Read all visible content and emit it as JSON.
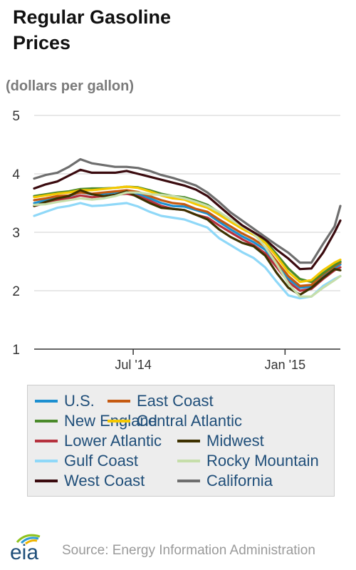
{
  "chart_data": {
    "type": "line",
    "title": "Regular Gasoline Prices",
    "ylabel": "(dollars per gallon)",
    "ylim": [
      1,
      5
    ],
    "yticks": [
      1,
      2,
      3,
      4,
      5
    ],
    "x_tick_labels": [
      "Jul '14",
      "Jan '15"
    ],
    "xlim": [
      "2014-03-03",
      "2015-03-09"
    ],
    "x_tick_dates": [
      "2014-07-01",
      "2015-01-01"
    ],
    "grid": true,
    "legend_position": "bottom",
    "x": [
      "2014-03-03",
      "2014-03-17",
      "2014-03-31",
      "2014-04-14",
      "2014-04-28",
      "2014-05-12",
      "2014-05-26",
      "2014-06-09",
      "2014-06-23",
      "2014-07-07",
      "2014-07-21",
      "2014-08-04",
      "2014-08-18",
      "2014-09-01",
      "2014-09-15",
      "2014-09-29",
      "2014-10-13",
      "2014-10-27",
      "2014-11-10",
      "2014-11-24",
      "2014-12-08",
      "2014-12-22",
      "2015-01-05",
      "2015-01-19",
      "2015-02-02",
      "2015-02-16",
      "2015-03-02",
      "2015-03-09"
    ],
    "series": [
      {
        "name": "U.S.",
        "color": "#1c8fd0",
        "values": [
          3.5,
          3.55,
          3.6,
          3.62,
          3.68,
          3.65,
          3.66,
          3.68,
          3.7,
          3.66,
          3.58,
          3.5,
          3.45,
          3.44,
          3.38,
          3.32,
          3.18,
          3.05,
          2.93,
          2.83,
          2.7,
          2.45,
          2.2,
          2.05,
          2.07,
          2.25,
          2.39,
          2.45
        ]
      },
      {
        "name": "East Coast",
        "color": "#c55a11",
        "values": [
          3.55,
          3.58,
          3.62,
          3.63,
          3.68,
          3.66,
          3.68,
          3.7,
          3.72,
          3.69,
          3.62,
          3.55,
          3.5,
          3.48,
          3.4,
          3.35,
          3.22,
          3.1,
          2.98,
          2.88,
          2.75,
          2.5,
          2.25,
          2.08,
          2.1,
          2.28,
          2.42,
          2.48
        ]
      },
      {
        "name": "New England",
        "color": "#4a8a2a",
        "values": [
          3.62,
          3.65,
          3.68,
          3.7,
          3.74,
          3.75,
          3.75,
          3.76,
          3.78,
          3.77,
          3.72,
          3.66,
          3.62,
          3.6,
          3.54,
          3.47,
          3.34,
          3.21,
          3.1,
          3.0,
          2.85,
          2.62,
          2.38,
          2.2,
          2.15,
          2.3,
          2.44,
          2.5
        ]
      },
      {
        "name": "Central Atlantic",
        "color": "#f5c800",
        "values": [
          3.6,
          3.63,
          3.66,
          3.68,
          3.72,
          3.72,
          3.74,
          3.76,
          3.78,
          3.76,
          3.7,
          3.63,
          3.58,
          3.56,
          3.48,
          3.42,
          3.3,
          3.18,
          3.06,
          2.96,
          2.82,
          2.58,
          2.32,
          2.15,
          2.18,
          2.35,
          2.48,
          2.53
        ]
      },
      {
        "name": "Lower Atlantic",
        "color": "#b5323e",
        "values": [
          3.45,
          3.5,
          3.55,
          3.58,
          3.63,
          3.6,
          3.62,
          3.64,
          3.66,
          3.62,
          3.54,
          3.45,
          3.4,
          3.38,
          3.3,
          3.25,
          3.12,
          3.0,
          2.88,
          2.78,
          2.64,
          2.4,
          2.15,
          2.0,
          2.03,
          2.2,
          2.35,
          2.4
        ]
      },
      {
        "name": "Midwest",
        "color": "#3d3100",
        "values": [
          3.45,
          3.52,
          3.58,
          3.62,
          3.72,
          3.65,
          3.62,
          3.64,
          3.7,
          3.6,
          3.5,
          3.42,
          3.4,
          3.38,
          3.3,
          3.22,
          3.05,
          2.92,
          2.82,
          2.76,
          2.6,
          2.3,
          2.05,
          1.93,
          2.05,
          2.22,
          2.37,
          2.35
        ]
      },
      {
        "name": "Gulf Coast",
        "color": "#8fd8f8",
        "values": [
          3.28,
          3.35,
          3.42,
          3.45,
          3.5,
          3.45,
          3.46,
          3.48,
          3.5,
          3.44,
          3.35,
          3.28,
          3.25,
          3.22,
          3.15,
          3.08,
          2.9,
          2.78,
          2.66,
          2.56,
          2.4,
          2.15,
          1.92,
          1.87,
          1.9,
          2.08,
          2.2,
          2.25
        ]
      },
      {
        "name": "Rocky Mountain",
        "color": "#c6deaa",
        "values": [
          3.47,
          3.48,
          3.52,
          3.55,
          3.58,
          3.56,
          3.58,
          3.62,
          3.68,
          3.68,
          3.65,
          3.64,
          3.62,
          3.58,
          3.52,
          3.45,
          3.35,
          3.22,
          3.1,
          2.98,
          2.75,
          2.45,
          2.12,
          1.9,
          1.9,
          2.05,
          2.18,
          2.25
        ]
      },
      {
        "name": "West Coast",
        "color": "#3a0a0e",
        "values": [
          3.75,
          3.82,
          3.87,
          3.97,
          4.07,
          4.02,
          4.02,
          4.02,
          4.05,
          4.0,
          3.95,
          3.9,
          3.85,
          3.8,
          3.73,
          3.62,
          3.45,
          3.28,
          3.12,
          3.0,
          2.88,
          2.7,
          2.55,
          2.37,
          2.38,
          2.65,
          3.0,
          3.2
        ]
      },
      {
        "name": "California",
        "color": "#6e6e6e",
        "values": [
          3.92,
          3.98,
          4.02,
          4.12,
          4.25,
          4.18,
          4.15,
          4.12,
          4.12,
          4.1,
          4.05,
          3.98,
          3.93,
          3.87,
          3.8,
          3.68,
          3.52,
          3.34,
          3.2,
          3.06,
          2.92,
          2.78,
          2.65,
          2.48,
          2.48,
          2.8,
          3.1,
          3.45
        ]
      }
    ]
  },
  "source": {
    "logo_text": "eia",
    "text": "Source: Energy Information Administration"
  }
}
